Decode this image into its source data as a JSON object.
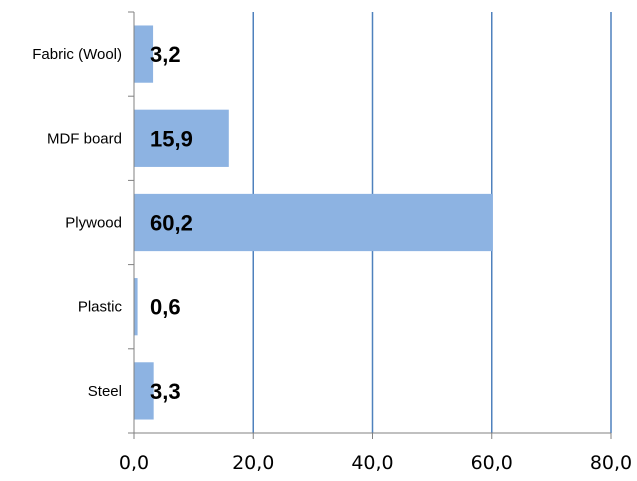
{
  "chart_data": {
    "type": "bar",
    "orientation": "horizontal",
    "title": "",
    "xlabel": "",
    "ylabel": "",
    "categories": [
      "Fabric (Wool)",
      "MDF board",
      "Plywood",
      "Plastic",
      "Steel"
    ],
    "values": [
      3.2,
      15.9,
      60.2,
      0.6,
      3.3
    ],
    "data_labels": [
      "3,2",
      "15,9",
      "60,2",
      "0,6",
      "3,3"
    ],
    "xlim": [
      0,
      80
    ],
    "x_ticks": [
      0,
      20,
      40,
      60,
      80
    ],
    "x_tick_labels": [
      "0,0",
      "20,0",
      "40,0",
      "60,0",
      "80,0"
    ],
    "grid": "vertical",
    "legend": "none",
    "colors": {
      "bar": "#8db3e2",
      "grid": "#4f81bd",
      "axis": "#808080"
    }
  }
}
